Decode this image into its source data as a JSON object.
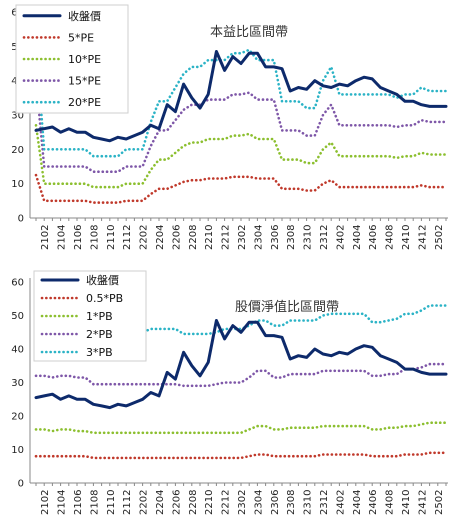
{
  "chart_data": [
    {
      "type": "line",
      "title": "本益比區間帶",
      "xlabel": "",
      "ylabel": "",
      "ylim": [
        0,
        60
      ],
      "yticks": [
        0,
        10,
        20,
        30,
        40,
        50,
        60
      ],
      "grid": false,
      "legend_placement": "top-left",
      "x_tick_labels": [
        "2102",
        "2104",
        "2106",
        "2108",
        "2110",
        "2112",
        "2202",
        "2204",
        "2206",
        "2208",
        "2210",
        "2212",
        "2302",
        "2304",
        "2306",
        "2308",
        "2310",
        "2312",
        "2402",
        "2404",
        "2406",
        "2408",
        "2410",
        "2412",
        "2502"
      ],
      "categories": [
        "2101",
        "2102",
        "2103",
        "2104",
        "2105",
        "2106",
        "2107",
        "2108",
        "2109",
        "2110",
        "2111",
        "2112",
        "2201",
        "2202",
        "2203",
        "2204",
        "2205",
        "2206",
        "2207",
        "2208",
        "2209",
        "2210",
        "2211",
        "2212",
        "2301",
        "2302",
        "2303",
        "2304",
        "2305",
        "2306",
        "2307",
        "2308",
        "2309",
        "2310",
        "2311",
        "2312",
        "2401",
        "2402",
        "2403",
        "2404",
        "2405",
        "2406",
        "2407",
        "2408",
        "2409",
        "2410",
        "2411",
        "2412",
        "2501",
        "2502",
        "2503"
      ],
      "series": [
        {
          "name": "收盤價",
          "color": "#0d2a6b",
          "style": "solid",
          "values": [
            25.5,
            26,
            26.5,
            25,
            26,
            25,
            25,
            23.5,
            23,
            22.5,
            23.5,
            23,
            24,
            25,
            27,
            26,
            33,
            31,
            39,
            35,
            32,
            36,
            48.5,
            43,
            47,
            45,
            48,
            48,
            44,
            44,
            43.5,
            37,
            38,
            37.5,
            40,
            38.5,
            38,
            39,
            38.5,
            40,
            41,
            40.5,
            38,
            37,
            36,
            34,
            34,
            33,
            32.5,
            32.5,
            32.5
          ]
        },
        {
          "name": "5*PE",
          "color": "#c0392b",
          "style": "dotted",
          "values": [
            12.5,
            5,
            5,
            5,
            5,
            5,
            5,
            4.5,
            4.5,
            4.5,
            4.5,
            5,
            5,
            5,
            7,
            8.5,
            8.5,
            9.5,
            10.5,
            11,
            11,
            11.5,
            11.5,
            11.5,
            12,
            12,
            12,
            11.5,
            11.5,
            11.5,
            8.5,
            8.5,
            8.5,
            8,
            8,
            10,
            11,
            9,
            9,
            9,
            9,
            9,
            9,
            9,
            9,
            9,
            9,
            9.5,
            9,
            9,
            9
          ]
        },
        {
          "name": "10*PE",
          "color": "#8cbf2f",
          "style": "dotted",
          "values": [
            27,
            10,
            10,
            10,
            10,
            10,
            10,
            9,
            9,
            9,
            9,
            10,
            10,
            10,
            14,
            17,
            17,
            19,
            21,
            22,
            22,
            23,
            23,
            23,
            24,
            24,
            24.5,
            23,
            23,
            23,
            17,
            17,
            17,
            16,
            16,
            20,
            22,
            18,
            18,
            18,
            18,
            18,
            18,
            18,
            17.5,
            18,
            18,
            19,
            18.5,
            18.5,
            18.5
          ]
        },
        {
          "name": "15*PE",
          "color": "#7e57a8",
          "style": "dotted",
          "values": [
            40,
            15,
            15,
            15,
            15,
            15,
            15,
            13.5,
            13.5,
            13.5,
            13.5,
            15,
            15,
            15,
            21,
            25.5,
            25.5,
            28.5,
            31.5,
            33,
            33,
            34.5,
            34.5,
            34.5,
            36,
            36,
            36.5,
            34.5,
            34.5,
            34.5,
            25.5,
            25.5,
            25.5,
            24,
            24,
            30,
            33,
            27,
            27,
            27,
            27,
            27,
            27,
            27,
            26.5,
            27,
            27,
            28.5,
            28,
            28,
            28
          ]
        },
        {
          "name": "20*PE",
          "color": "#2bb3c6",
          "style": "dotted",
          "values": [
            50,
            20,
            20,
            20,
            20,
            20,
            20,
            18,
            18,
            18,
            18,
            20,
            20,
            20,
            28,
            34,
            34,
            38,
            42,
            44,
            44,
            46,
            46,
            46,
            48,
            48,
            49,
            46,
            46,
            46,
            34,
            34,
            34,
            32,
            32,
            40,
            44,
            36,
            36,
            36,
            36,
            36,
            36,
            36,
            35,
            36,
            36,
            38,
            37,
            37,
            37
          ]
        }
      ]
    },
    {
      "type": "line",
      "title": "股價淨值比區間帶",
      "xlabel": "",
      "ylabel": "",
      "ylim": [
        0,
        60
      ],
      "yticks": [
        0,
        10,
        20,
        30,
        40,
        50,
        60
      ],
      "grid": false,
      "legend_placement": "top-left",
      "x_tick_labels": [
        "2102",
        "2104",
        "2106",
        "2108",
        "2110",
        "2112",
        "2202",
        "2204",
        "2206",
        "2208",
        "2210",
        "2212",
        "2302",
        "2304",
        "2306",
        "2308",
        "2310",
        "2312",
        "2402",
        "2404",
        "2406",
        "2408",
        "2410",
        "2412",
        "2502"
      ],
      "categories": [
        "2101",
        "2102",
        "2103",
        "2104",
        "2105",
        "2106",
        "2107",
        "2108",
        "2109",
        "2110",
        "2111",
        "2112",
        "2201",
        "2202",
        "2203",
        "2204",
        "2205",
        "2206",
        "2207",
        "2208",
        "2209",
        "2210",
        "2211",
        "2212",
        "2301",
        "2302",
        "2303",
        "2304",
        "2305",
        "2306",
        "2307",
        "2308",
        "2309",
        "2310",
        "2311",
        "2312",
        "2401",
        "2402",
        "2403",
        "2404",
        "2405",
        "2406",
        "2407",
        "2408",
        "2409",
        "2410",
        "2411",
        "2412",
        "2501",
        "2502",
        "2503"
      ],
      "series": [
        {
          "name": "收盤價",
          "color": "#0d2a6b",
          "style": "solid",
          "values": [
            25.5,
            26,
            26.5,
            25,
            26,
            25,
            25,
            23.5,
            23,
            22.5,
            23.5,
            23,
            24,
            25,
            27,
            26,
            33,
            31,
            39,
            35,
            32,
            36,
            48.5,
            43,
            47,
            45,
            48,
            48,
            44,
            44,
            43.5,
            37,
            38,
            37.5,
            40,
            38.5,
            38,
            39,
            38.5,
            40,
            41,
            40.5,
            38,
            37,
            36,
            34,
            34,
            33,
            32.5,
            32.5,
            32.5
          ]
        },
        {
          "name": "0.5*PB",
          "color": "#c0392b",
          "style": "dotted",
          "values": [
            8,
            8,
            8,
            8,
            8,
            8,
            8,
            7.5,
            7.5,
            7.5,
            7.5,
            7.5,
            7.5,
            7.5,
            7.5,
            7.5,
            7.5,
            7.5,
            7.5,
            7.5,
            7.5,
            7.5,
            7.5,
            7.5,
            7.5,
            7.5,
            8,
            8.5,
            8.5,
            8,
            8,
            8,
            8,
            8,
            8,
            8.5,
            8.5,
            8.5,
            8.5,
            8.5,
            8.5,
            8,
            8,
            8,
            8,
            8.5,
            8.5,
            8.5,
            9,
            9,
            9
          ]
        },
        {
          "name": "1*PB",
          "color": "#8cbf2f",
          "style": "dotted",
          "values": [
            16,
            16,
            15.5,
            16,
            16,
            15.5,
            15.5,
            15,
            15,
            15,
            15,
            15,
            15,
            15,
            15,
            15,
            15,
            15,
            15,
            15,
            15,
            15,
            15,
            15,
            15,
            15,
            16,
            17,
            17,
            16,
            16,
            16.5,
            16.5,
            16.5,
            16.5,
            17,
            17,
            17,
            17,
            17,
            17,
            16,
            16,
            16.5,
            16.5,
            17,
            17,
            17.5,
            18,
            18,
            18
          ]
        },
        {
          "name": "2*PB",
          "color": "#7e57a8",
          "style": "dotted",
          "values": [
            32,
            32,
            31.5,
            32,
            32,
            31.5,
            31.5,
            29.5,
            29.5,
            29.5,
            29.5,
            29.5,
            29.5,
            29.5,
            29.5,
            29.5,
            29.5,
            29.5,
            29,
            29,
            29,
            29,
            29.5,
            30,
            30,
            30,
            31.5,
            33.5,
            33.5,
            31.5,
            31.5,
            32.5,
            32.5,
            32.5,
            32.5,
            33.5,
            33.5,
            33.5,
            33.5,
            33.5,
            33.5,
            32,
            32,
            32.5,
            32.5,
            34,
            34,
            34.5,
            35.5,
            35.5,
            35.5
          ]
        },
        {
          "name": "3*PB",
          "color": "#2bb3c6",
          "style": "dotted",
          "values": [
            48,
            48,
            47.5,
            48,
            48,
            47.5,
            47.5,
            45,
            45,
            45,
            45,
            45,
            45,
            45,
            46,
            46,
            46,
            46,
            44.5,
            44.5,
            44.5,
            44.5,
            45,
            46,
            46,
            46,
            47,
            48.5,
            48.5,
            47,
            47,
            48.5,
            48.5,
            48.5,
            48.5,
            50,
            50.5,
            50.5,
            50.5,
            50.5,
            50.5,
            48,
            48,
            48.5,
            49,
            50.5,
            50.5,
            51.5,
            53,
            53,
            53
          ]
        }
      ]
    }
  ]
}
